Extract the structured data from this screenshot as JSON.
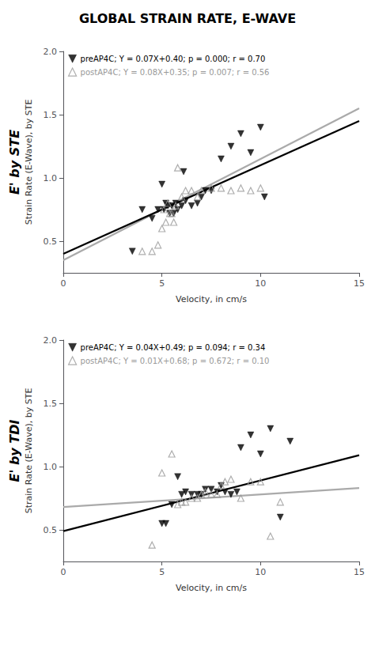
{
  "title": "GLOBAL STRAIN RATE, E-WAVE",
  "chart_data": [
    {
      "type": "scatter",
      "title": "E' by STE",
      "xlabel": "Velocity, in cm/s",
      "ylabel": "Strain Rate (E-Wave), by STE",
      "xlim": [
        0,
        15
      ],
      "ylim": [
        0.25,
        2.0
      ],
      "xticks": [
        0,
        5,
        10,
        15
      ],
      "yticks": [
        0.5,
        {
          "value": 1.0,
          "label": "1.0"
        },
        1.5,
        {
          "value": 2.0,
          "label": "2.0"
        }
      ],
      "grid": false,
      "legend": "upper left",
      "series": [
        {
          "type": "line",
          "color": "#aaaaaa",
          "x": [
            0,
            15
          ],
          "values": [
            0.35,
            1.55
          ]
        },
        {
          "type": "line",
          "color": "#000000",
          "x": [
            0,
            15
          ],
          "values": [
            0.4,
            1.45
          ]
        },
        {
          "name": "preAP4C; Y = 0.07X+0.40; p = 0.000; r = 0.70",
          "type": "scatter",
          "marker": "triangle-down",
          "color": "#000000",
          "x": [
            3.5,
            4.0,
            4.5,
            4.8,
            5.0,
            5.1,
            5.2,
            5.3,
            5.4,
            5.5,
            5.6,
            5.7,
            5.8,
            6.0,
            6.1,
            6.2,
            6.5,
            6.8,
            7.0,
            7.2,
            7.5,
            8.0,
            8.5,
            9.0,
            9.5,
            10.0,
            10.2
          ],
          "values": [
            0.42,
            0.75,
            0.68,
            0.75,
            0.95,
            0.75,
            0.8,
            0.78,
            0.72,
            0.78,
            0.72,
            0.8,
            0.75,
            0.78,
            1.05,
            0.82,
            0.78,
            0.8,
            0.85,
            0.9,
            0.9,
            1.15,
            1.25,
            1.35,
            1.2,
            1.4,
            0.85
          ]
        },
        {
          "name": "postAP4C; Y = 0.08X+0.35; p = 0.007; r = 0.56",
          "type": "scatter",
          "marker": "triangle-up-open",
          "color": "#999999",
          "x": [
            4.0,
            4.5,
            4.8,
            5.0,
            5.1,
            5.2,
            5.3,
            5.4,
            5.5,
            5.6,
            5.7,
            5.8,
            6.0,
            6.2,
            6.5,
            6.8,
            7.0,
            7.5,
            8.0,
            8.5,
            9.0,
            9.5,
            10.0
          ],
          "values": [
            0.42,
            0.42,
            0.47,
            0.6,
            0.75,
            0.65,
            0.8,
            0.72,
            0.72,
            0.65,
            0.78,
            1.08,
            0.85,
            0.9,
            0.9,
            0.85,
            0.9,
            0.92,
            0.92,
            0.9,
            0.92,
            0.9,
            0.92
          ]
        }
      ]
    },
    {
      "type": "scatter",
      "title": "E' by TDI",
      "xlabel": "Velocity, in cm/s",
      "ylabel": "Strain Rate (E-Wave), by STE",
      "xlim": [
        0,
        15
      ],
      "ylim": [
        0.25,
        2.0
      ],
      "xticks": [
        0,
        5,
        10,
        15
      ],
      "yticks": [
        0.5,
        {
          "value": 1.0,
          "label": "1.0"
        },
        1.5,
        {
          "value": 2.0,
          "label": "2.0"
        }
      ],
      "grid": false,
      "legend": "upper left",
      "series": [
        {
          "type": "line",
          "color": "#aaaaaa",
          "x": [
            0,
            15
          ],
          "values": [
            0.68,
            0.83
          ]
        },
        {
          "type": "line",
          "color": "#000000",
          "x": [
            0,
            15
          ],
          "values": [
            0.49,
            1.09
          ]
        },
        {
          "name": "preAP4C; Y = 0.04X+0.49; p = 0.094; r = 0.34",
          "type": "scatter",
          "marker": "triangle-down",
          "color": "#000000",
          "x": [
            5.0,
            5.2,
            5.5,
            5.8,
            6.0,
            6.2,
            6.5,
            6.8,
            7.0,
            7.2,
            7.5,
            7.8,
            8.0,
            8.2,
            8.5,
            8.8,
            9.0,
            9.5,
            10.0,
            10.5,
            11.0,
            11.5
          ],
          "values": [
            0.55,
            0.55,
            0.7,
            0.92,
            0.78,
            0.8,
            0.78,
            0.78,
            0.78,
            0.82,
            0.82,
            0.8,
            0.85,
            0.8,
            0.78,
            0.8,
            1.15,
            1.25,
            1.1,
            1.3,
            0.6,
            1.2
          ]
        },
        {
          "name": "postAP4C; Y = 0.01X+0.68; p = 0.672; r = 0.10",
          "type": "scatter",
          "marker": "triangle-up-open",
          "color": "#999999",
          "x": [
            4.5,
            5.0,
            5.5,
            5.8,
            6.0,
            6.2,
            6.5,
            6.8,
            7.0,
            7.2,
            7.5,
            7.8,
            8.0,
            8.2,
            8.5,
            9.0,
            9.5,
            10.0,
            10.5,
            11.0
          ],
          "values": [
            0.38,
            0.95,
            1.1,
            0.7,
            0.72,
            0.72,
            0.75,
            0.75,
            0.78,
            0.8,
            0.78,
            0.78,
            0.85,
            0.88,
            0.9,
            0.75,
            0.88,
            0.88,
            0.45,
            0.72
          ]
        }
      ]
    }
  ]
}
